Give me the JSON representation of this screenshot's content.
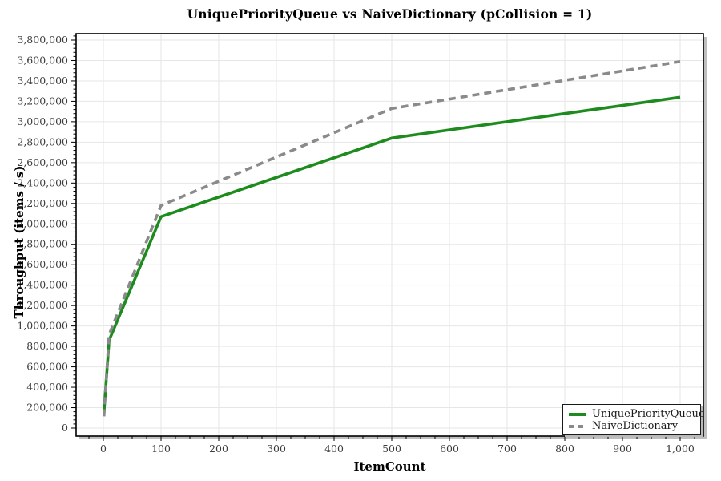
{
  "chart_data": {
    "type": "line",
    "title": "UniquePriorityQueue vs NaiveDictionary (pCollision = 1)",
    "xlabel": "ItemCount",
    "ylabel": "Throughput (items / s)",
    "xlim": [
      0,
      1000
    ],
    "ylim": [
      0,
      3800000
    ],
    "x_major_step": 100,
    "x_minor_step": 25,
    "y_major_step": 200000,
    "y_minor_step": 40000,
    "grid": true,
    "legend_position": "bottom-right",
    "x": [
      1,
      10,
      100,
      500,
      1000
    ],
    "series": [
      {
        "name": "UniquePriorityQueue",
        "style": "solid",
        "color": "#1e8b1e",
        "values": [
          150000,
          860000,
          2070000,
          2840000,
          3240000
        ]
      },
      {
        "name": "NaiveDictionary",
        "style": "dashed",
        "color": "#8a8a8a",
        "values": [
          115000,
          915000,
          2180000,
          3130000,
          3590000
        ]
      }
    ],
    "colors": {
      "grid": "#e6e6e6",
      "axis": "#000000",
      "tick_label": "#3c3c3c",
      "plot_shadow": "#bfbfbf",
      "background": "#ffffff"
    }
  }
}
